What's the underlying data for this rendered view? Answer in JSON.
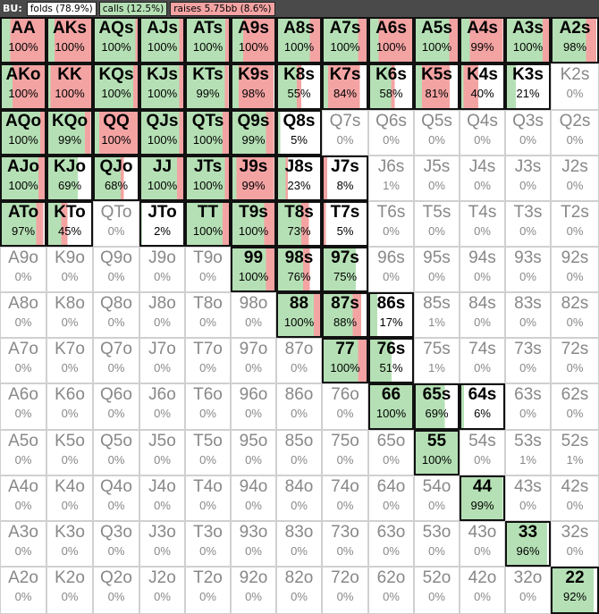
{
  "header": {
    "position": "BU:",
    "legend": [
      {
        "label": "folds (78.9%)",
        "color": "#ffffff"
      },
      {
        "label": "calls (12.5%)",
        "color": "#b5e0b5"
      },
      {
        "label": "raises 5.75bb (8.6%)",
        "color": "#f4a3a3"
      }
    ]
  },
  "colors": {
    "fold": "#ffffff",
    "call": "#b5e0b5",
    "raise": "#f4a3a3"
  },
  "rows": [
    [
      {
        "hand": "AA",
        "pct": "100%",
        "call": 0.2,
        "raise": 0.8
      },
      {
        "hand": "AKs",
        "pct": "100%",
        "call": 0.15,
        "raise": 0.85
      },
      {
        "hand": "AQs",
        "pct": "100%",
        "call": 0.95,
        "raise": 0.05
      },
      {
        "hand": "AJs",
        "pct": "100%",
        "call": 0.9,
        "raise": 0.1
      },
      {
        "hand": "ATs",
        "pct": "100%",
        "call": 0.92,
        "raise": 0.08
      },
      {
        "hand": "A9s",
        "pct": "100%",
        "call": 0.25,
        "raise": 0.75
      },
      {
        "hand": "A8s",
        "pct": "100%",
        "call": 0.75,
        "raise": 0.25
      },
      {
        "hand": "A7s",
        "pct": "100%",
        "call": 0.8,
        "raise": 0.2
      },
      {
        "hand": "A6s",
        "pct": "100%",
        "call": 0.2,
        "raise": 0.8
      },
      {
        "hand": "A5s",
        "pct": "100%",
        "call": 0.8,
        "raise": 0.2
      },
      {
        "hand": "A4s",
        "pct": "99%",
        "call": 0.2,
        "raise": 0.79
      },
      {
        "hand": "A3s",
        "pct": "100%",
        "call": 0.85,
        "raise": 0.15
      },
      {
        "hand": "A2s",
        "pct": "98%",
        "call": 0.75,
        "raise": 0.23
      }
    ],
    [
      {
        "hand": "AKo",
        "pct": "100%",
        "call": 0.25,
        "raise": 0.75
      },
      {
        "hand": "KK",
        "pct": "100%",
        "call": 0.05,
        "raise": 0.95
      },
      {
        "hand": "KQs",
        "pct": "100%",
        "call": 0.9,
        "raise": 0.1
      },
      {
        "hand": "KJs",
        "pct": "100%",
        "call": 0.9,
        "raise": 0.1
      },
      {
        "hand": "KTs",
        "pct": "99%",
        "call": 0.9,
        "raise": 0.09
      },
      {
        "hand": "K9s",
        "pct": "98%",
        "call": 0.15,
        "raise": 0.83
      },
      {
        "hand": "K8s",
        "pct": "55%",
        "call": 0.45,
        "raise": 0.1
      },
      {
        "hand": "K7s",
        "pct": "84%",
        "call": 0.1,
        "raise": 0.74
      },
      {
        "hand": "K6s",
        "pct": "58%",
        "call": 0.5,
        "raise": 0.08
      },
      {
        "hand": "K5s",
        "pct": "81%",
        "call": 0.15,
        "raise": 0.66
      },
      {
        "hand": "K4s",
        "pct": "40%",
        "call": 0.05,
        "raise": 0.35
      },
      {
        "hand": "K3s",
        "pct": "21%",
        "call": 0.21,
        "raise": 0.0
      },
      {
        "hand": "K2s",
        "pct": "0%",
        "call": 0,
        "raise": 0
      }
    ],
    [
      {
        "hand": "AQo",
        "pct": "100%",
        "call": 0.9,
        "raise": 0.1
      },
      {
        "hand": "KQo",
        "pct": "99%",
        "call": 0.85,
        "raise": 0.14
      },
      {
        "hand": "QQ",
        "pct": "100%",
        "call": 0.1,
        "raise": 0.9
      },
      {
        "hand": "QJs",
        "pct": "100%",
        "call": 0.9,
        "raise": 0.1
      },
      {
        "hand": "QTs",
        "pct": "100%",
        "call": 0.85,
        "raise": 0.15
      },
      {
        "hand": "Q9s",
        "pct": "99%",
        "call": 0.8,
        "raise": 0.19
      },
      {
        "hand": "Q8s",
        "pct": "5%",
        "call": 0.05,
        "raise": 0.0
      },
      {
        "hand": "Q7s",
        "pct": "0%",
        "call": 0,
        "raise": 0
      },
      {
        "hand": "Q6s",
        "pct": "0%",
        "call": 0,
        "raise": 0
      },
      {
        "hand": "Q5s",
        "pct": "0%",
        "call": 0,
        "raise": 0
      },
      {
        "hand": "Q4s",
        "pct": "0%",
        "call": 0,
        "raise": 0
      },
      {
        "hand": "Q3s",
        "pct": "0%",
        "call": 0,
        "raise": 0
      },
      {
        "hand": "Q2s",
        "pct": "0%",
        "call": 0,
        "raise": 0
      }
    ],
    [
      {
        "hand": "AJo",
        "pct": "100%",
        "call": 0.85,
        "raise": 0.15
      },
      {
        "hand": "KJo",
        "pct": "69%",
        "call": 0.69,
        "raise": 0.0
      },
      {
        "hand": "QJo",
        "pct": "68%",
        "call": 0.6,
        "raise": 0.08
      },
      {
        "hand": "JJ",
        "pct": "100%",
        "call": 0.85,
        "raise": 0.15
      },
      {
        "hand": "JTs",
        "pct": "100%",
        "call": 0.9,
        "raise": 0.1
      },
      {
        "hand": "J9s",
        "pct": "99%",
        "call": 0.1,
        "raise": 0.89
      },
      {
        "hand": "J8s",
        "pct": "23%",
        "call": 0.18,
        "raise": 0.05
      },
      {
        "hand": "J7s",
        "pct": "8%",
        "call": 0.0,
        "raise": 0.08
      },
      {
        "hand": "J6s",
        "pct": "1%",
        "call": 0,
        "raise": 0
      },
      {
        "hand": "J5s",
        "pct": "0%",
        "call": 0,
        "raise": 0
      },
      {
        "hand": "J4s",
        "pct": "0%",
        "call": 0,
        "raise": 0
      },
      {
        "hand": "J3s",
        "pct": "0%",
        "call": 0,
        "raise": 0
      },
      {
        "hand": "J2s",
        "pct": "0%",
        "call": 0,
        "raise": 0
      }
    ],
    [
      {
        "hand": "ATo",
        "pct": "97%",
        "call": 0.8,
        "raise": 0.17
      },
      {
        "hand": "KTo",
        "pct": "45%",
        "call": 0.3,
        "raise": 0.15
      },
      {
        "hand": "QTo",
        "pct": "0%",
        "call": 0,
        "raise": 0
      },
      {
        "hand": "JTo",
        "pct": "2%",
        "call": 0.02,
        "raise": 0.0
      },
      {
        "hand": "TT",
        "pct": "100%",
        "call": 0.85,
        "raise": 0.15
      },
      {
        "hand": "T9s",
        "pct": "100%",
        "call": 0.75,
        "raise": 0.25
      },
      {
        "hand": "T8s",
        "pct": "73%",
        "call": 0.55,
        "raise": 0.18
      },
      {
        "hand": "T7s",
        "pct": "5%",
        "call": 0.0,
        "raise": 0.05
      },
      {
        "hand": "T6s",
        "pct": "0%",
        "call": 0,
        "raise": 0
      },
      {
        "hand": "T5s",
        "pct": "0%",
        "call": 0,
        "raise": 0
      },
      {
        "hand": "T4s",
        "pct": "0%",
        "call": 0,
        "raise": 0
      },
      {
        "hand": "T3s",
        "pct": "0%",
        "call": 0,
        "raise": 0
      },
      {
        "hand": "T2s",
        "pct": "0%",
        "call": 0,
        "raise": 0
      }
    ],
    [
      {
        "hand": "A9o",
        "pct": "0%",
        "call": 0,
        "raise": 0
      },
      {
        "hand": "K9o",
        "pct": "0%",
        "call": 0,
        "raise": 0
      },
      {
        "hand": "Q9o",
        "pct": "0%",
        "call": 0,
        "raise": 0
      },
      {
        "hand": "J9o",
        "pct": "0%",
        "call": 0,
        "raise": 0
      },
      {
        "hand": "T9o",
        "pct": "0%",
        "call": 0,
        "raise": 0
      },
      {
        "hand": "99",
        "pct": "100%",
        "call": 0.8,
        "raise": 0.2
      },
      {
        "hand": "98s",
        "pct": "76%",
        "call": 0.6,
        "raise": 0.16
      },
      {
        "hand": "97s",
        "pct": "75%",
        "call": 0.75,
        "raise": 0.0
      },
      {
        "hand": "96s",
        "pct": "0%",
        "call": 0,
        "raise": 0
      },
      {
        "hand": "95s",
        "pct": "0%",
        "call": 0,
        "raise": 0
      },
      {
        "hand": "94s",
        "pct": "0%",
        "call": 0,
        "raise": 0
      },
      {
        "hand": "93s",
        "pct": "0%",
        "call": 0,
        "raise": 0
      },
      {
        "hand": "92s",
        "pct": "0%",
        "call": 0,
        "raise": 0
      }
    ],
    [
      {
        "hand": "A8o",
        "pct": "0%",
        "call": 0,
        "raise": 0
      },
      {
        "hand": "K8o",
        "pct": "0%",
        "call": 0,
        "raise": 0
      },
      {
        "hand": "Q8o",
        "pct": "0%",
        "call": 0,
        "raise": 0
      },
      {
        "hand": "J8o",
        "pct": "0%",
        "call": 0,
        "raise": 0
      },
      {
        "hand": "T8o",
        "pct": "0%",
        "call": 0,
        "raise": 0
      },
      {
        "hand": "98o",
        "pct": "0%",
        "call": 0,
        "raise": 0
      },
      {
        "hand": "88",
        "pct": "100%",
        "call": 0.85,
        "raise": 0.15
      },
      {
        "hand": "87s",
        "pct": "88%",
        "call": 0.68,
        "raise": 0.2
      },
      {
        "hand": "86s",
        "pct": "17%",
        "call": 0.17,
        "raise": 0.0
      },
      {
        "hand": "85s",
        "pct": "1%",
        "call": 0,
        "raise": 0
      },
      {
        "hand": "84s",
        "pct": "0%",
        "call": 0,
        "raise": 0
      },
      {
        "hand": "83s",
        "pct": "0%",
        "call": 0,
        "raise": 0
      },
      {
        "hand": "82s",
        "pct": "0%",
        "call": 0,
        "raise": 0
      }
    ],
    [
      {
        "hand": "A7o",
        "pct": "0%",
        "call": 0,
        "raise": 0
      },
      {
        "hand": "K7o",
        "pct": "0%",
        "call": 0,
        "raise": 0
      },
      {
        "hand": "Q7o",
        "pct": "0%",
        "call": 0,
        "raise": 0
      },
      {
        "hand": "J7o",
        "pct": "0%",
        "call": 0,
        "raise": 0
      },
      {
        "hand": "T7o",
        "pct": "0%",
        "call": 0,
        "raise": 0
      },
      {
        "hand": "97o",
        "pct": "0%",
        "call": 0,
        "raise": 0
      },
      {
        "hand": "87o",
        "pct": "0%",
        "call": 0,
        "raise": 0
      },
      {
        "hand": "77",
        "pct": "100%",
        "call": 0.8,
        "raise": 0.2
      },
      {
        "hand": "76s",
        "pct": "51%",
        "call": 0.51,
        "raise": 0.0
      },
      {
        "hand": "75s",
        "pct": "1%",
        "call": 0.01,
        "raise": 0.0
      },
      {
        "hand": "74s",
        "pct": "0%",
        "call": 0,
        "raise": 0
      },
      {
        "hand": "73s",
        "pct": "0%",
        "call": 0,
        "raise": 0
      },
      {
        "hand": "72s",
        "pct": "0%",
        "call": 0,
        "raise": 0
      }
    ],
    [
      {
        "hand": "A6o",
        "pct": "0%",
        "call": 0,
        "raise": 0
      },
      {
        "hand": "K6o",
        "pct": "0%",
        "call": 0,
        "raise": 0
      },
      {
        "hand": "Q6o",
        "pct": "0%",
        "call": 0,
        "raise": 0
      },
      {
        "hand": "J6o",
        "pct": "0%",
        "call": 0,
        "raise": 0
      },
      {
        "hand": "T6o",
        "pct": "0%",
        "call": 0,
        "raise": 0
      },
      {
        "hand": "96o",
        "pct": "0%",
        "call": 0,
        "raise": 0
      },
      {
        "hand": "86o",
        "pct": "0%",
        "call": 0,
        "raise": 0
      },
      {
        "hand": "76o",
        "pct": "0%",
        "call": 0,
        "raise": 0
      },
      {
        "hand": "66",
        "pct": "100%",
        "call": 1.0,
        "raise": 0.0
      },
      {
        "hand": "65s",
        "pct": "69%",
        "call": 0.69,
        "raise": 0.0
      },
      {
        "hand": "64s",
        "pct": "6%",
        "call": 0.06,
        "raise": 0.0
      },
      {
        "hand": "63s",
        "pct": "0%",
        "call": 0,
        "raise": 0
      },
      {
        "hand": "62s",
        "pct": "0%",
        "call": 0,
        "raise": 0
      }
    ],
    [
      {
        "hand": "A5o",
        "pct": "0%",
        "call": 0,
        "raise": 0
      },
      {
        "hand": "K5o",
        "pct": "0%",
        "call": 0,
        "raise": 0
      },
      {
        "hand": "Q5o",
        "pct": "0%",
        "call": 0,
        "raise": 0
      },
      {
        "hand": "J5o",
        "pct": "0%",
        "call": 0,
        "raise": 0
      },
      {
        "hand": "T5o",
        "pct": "0%",
        "call": 0,
        "raise": 0
      },
      {
        "hand": "95o",
        "pct": "0%",
        "call": 0,
        "raise": 0
      },
      {
        "hand": "85o",
        "pct": "0%",
        "call": 0,
        "raise": 0
      },
      {
        "hand": "75o",
        "pct": "0%",
        "call": 0,
        "raise": 0
      },
      {
        "hand": "65o",
        "pct": "0%",
        "call": 0,
        "raise": 0
      },
      {
        "hand": "55",
        "pct": "100%",
        "call": 1.0,
        "raise": 0.0
      },
      {
        "hand": "54s",
        "pct": "0%",
        "call": 0,
        "raise": 0
      },
      {
        "hand": "53s",
        "pct": "1%",
        "call": 0,
        "raise": 0
      },
      {
        "hand": "52s",
        "pct": "1%",
        "call": 0,
        "raise": 0
      }
    ],
    [
      {
        "hand": "A4o",
        "pct": "0%",
        "call": 0,
        "raise": 0
      },
      {
        "hand": "K4o",
        "pct": "0%",
        "call": 0,
        "raise": 0
      },
      {
        "hand": "Q4o",
        "pct": "0%",
        "call": 0,
        "raise": 0
      },
      {
        "hand": "J4o",
        "pct": "0%",
        "call": 0,
        "raise": 0
      },
      {
        "hand": "T4o",
        "pct": "0%",
        "call": 0,
        "raise": 0
      },
      {
        "hand": "94o",
        "pct": "0%",
        "call": 0,
        "raise": 0
      },
      {
        "hand": "84o",
        "pct": "0%",
        "call": 0,
        "raise": 0
      },
      {
        "hand": "74o",
        "pct": "0%",
        "call": 0,
        "raise": 0
      },
      {
        "hand": "64o",
        "pct": "0%",
        "call": 0,
        "raise": 0
      },
      {
        "hand": "54o",
        "pct": "0%",
        "call": 0,
        "raise": 0
      },
      {
        "hand": "44",
        "pct": "99%",
        "call": 0.99,
        "raise": 0.0
      },
      {
        "hand": "43s",
        "pct": "0%",
        "call": 0,
        "raise": 0
      },
      {
        "hand": "42s",
        "pct": "0%",
        "call": 0,
        "raise": 0
      }
    ],
    [
      {
        "hand": "A3o",
        "pct": "0%",
        "call": 0,
        "raise": 0
      },
      {
        "hand": "K3o",
        "pct": "0%",
        "call": 0,
        "raise": 0
      },
      {
        "hand": "Q3o",
        "pct": "0%",
        "call": 0,
        "raise": 0
      },
      {
        "hand": "J3o",
        "pct": "0%",
        "call": 0,
        "raise": 0
      },
      {
        "hand": "T3o",
        "pct": "0%",
        "call": 0,
        "raise": 0
      },
      {
        "hand": "93o",
        "pct": "0%",
        "call": 0,
        "raise": 0
      },
      {
        "hand": "83o",
        "pct": "0%",
        "call": 0,
        "raise": 0
      },
      {
        "hand": "73o",
        "pct": "0%",
        "call": 0,
        "raise": 0
      },
      {
        "hand": "63o",
        "pct": "0%",
        "call": 0,
        "raise": 0
      },
      {
        "hand": "53o",
        "pct": "0%",
        "call": 0,
        "raise": 0
      },
      {
        "hand": "43o",
        "pct": "0%",
        "call": 0,
        "raise": 0
      },
      {
        "hand": "33",
        "pct": "96%",
        "call": 0.96,
        "raise": 0.0
      },
      {
        "hand": "32s",
        "pct": "0%",
        "call": 0,
        "raise": 0
      }
    ],
    [
      {
        "hand": "A2o",
        "pct": "0%",
        "call": 0,
        "raise": 0
      },
      {
        "hand": "K2o",
        "pct": "0%",
        "call": 0,
        "raise": 0
      },
      {
        "hand": "Q2o",
        "pct": "0%",
        "call": 0,
        "raise": 0
      },
      {
        "hand": "J2o",
        "pct": "0%",
        "call": 0,
        "raise": 0
      },
      {
        "hand": "T2o",
        "pct": "0%",
        "call": 0,
        "raise": 0
      },
      {
        "hand": "92o",
        "pct": "0%",
        "call": 0,
        "raise": 0
      },
      {
        "hand": "82o",
        "pct": "0%",
        "call": 0,
        "raise": 0
      },
      {
        "hand": "72o",
        "pct": "0%",
        "call": 0,
        "raise": 0
      },
      {
        "hand": "62o",
        "pct": "0%",
        "call": 0,
        "raise": 0
      },
      {
        "hand": "52o",
        "pct": "0%",
        "call": 0,
        "raise": 0
      },
      {
        "hand": "42o",
        "pct": "0%",
        "call": 0,
        "raise": 0
      },
      {
        "hand": "32o",
        "pct": "0%",
        "call": 0,
        "raise": 0
      },
      {
        "hand": "22",
        "pct": "92%",
        "call": 0.92,
        "raise": 0.0
      }
    ]
  ]
}
